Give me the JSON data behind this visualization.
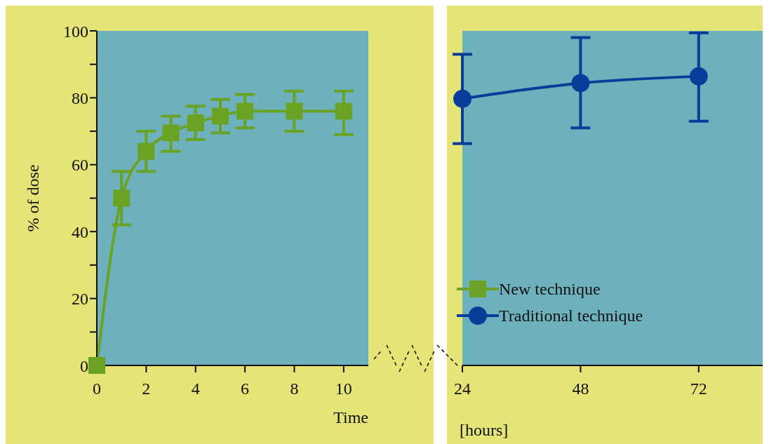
{
  "chart_data": [
    {
      "type": "line",
      "xlabel": "Time",
      "ylabel": "% of dose",
      "xlim": [
        0,
        11
      ],
      "xticks": [
        0,
        2,
        4,
        6,
        8,
        10
      ],
      "ylim": [
        0,
        100
      ],
      "yticks": [
        0,
        {
          "value": 10,
          "label": null
        },
        20,
        {
          "value": 30,
          "label": null
        },
        40,
        {
          "value": 50,
          "label": null
        },
        60,
        {
          "value": 70,
          "label": null
        },
        80,
        {
          "value": 90,
          "label": null
        },
        100
      ],
      "grid": false,
      "legend": false,
      "series": [
        {
          "name": "New technique",
          "color": "#6aa323",
          "marker": "square",
          "x": [
            0,
            1,
            2,
            3,
            4,
            5,
            6,
            8,
            10
          ],
          "values": [
            0,
            50,
            64,
            69.5,
            72.5,
            74.5,
            76,
            76,
            76
          ],
          "errors": [
            null,
            [
              42,
              58
            ],
            [
              58,
              70
            ],
            [
              64,
              74.5
            ],
            [
              67.5,
              77.5
            ],
            [
              69.5,
              79.5
            ],
            [
              71,
              81
            ],
            [
              70,
              82
            ],
            [
              69,
              82
            ]
          ]
        }
      ]
    },
    {
      "type": "line",
      "xlabel": "[hours]",
      "xlim": [
        24,
        85
      ],
      "xticks": [
        24,
        48,
        72
      ],
      "ylim": [
        0,
        100
      ],
      "tick_labels": "x",
      "grid": false,
      "legend": "bottom left",
      "series": [
        {
          "name": "Traditional technique",
          "color": "#0a3d9a",
          "marker": "circle",
          "x": [
            24,
            48,
            72
          ],
          "values": [
            79.7,
            84.4,
            86.4
          ],
          "errors": [
            [
              66.3,
              93
            ],
            [
              71,
              98
            ],
            [
              73,
              99.4
            ]
          ]
        }
      ]
    }
  ]
}
